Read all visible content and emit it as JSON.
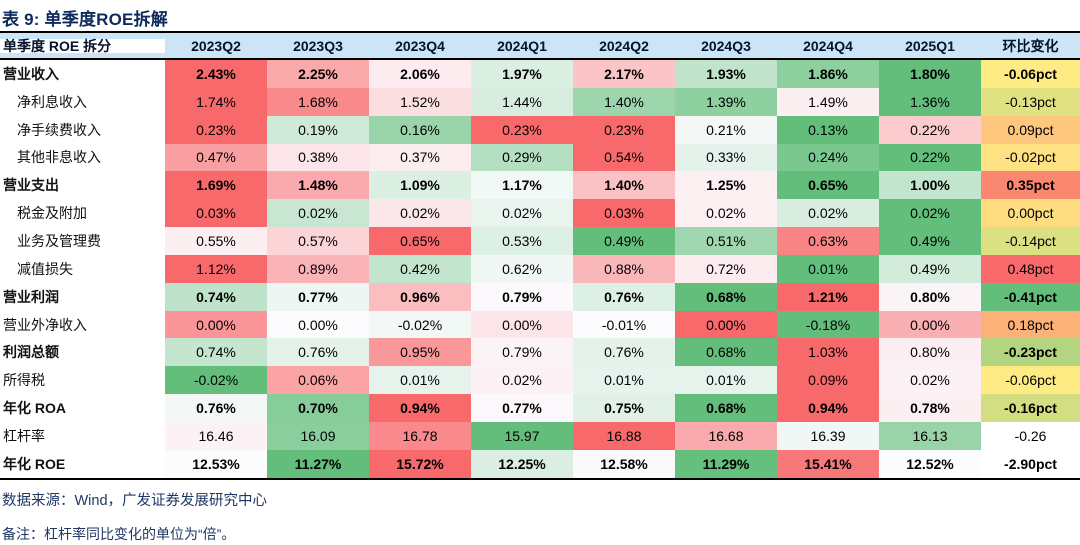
{
  "title": "表 9: 单季度ROE拆解",
  "colors": {
    "header_bg": "#cbe4f6",
    "title_text": "#0e2a5c",
    "footer_text": "#1f3864",
    "scale_red": "#F8696B",
    "scale_yellow": "#FFEB84",
    "scale_green": "#63BE7B",
    "border": "#000000"
  },
  "table": {
    "columns": [
      "单季度 ROE 拆分",
      "2023Q2",
      "2023Q3",
      "2023Q4",
      "2024Q1",
      "2024Q2",
      "2024Q3",
      "2024Q4",
      "2025Q1",
      "环比变化"
    ],
    "rows": [
      {
        "label": "营业收入",
        "indent": false,
        "label_bold": true,
        "values_bold": true,
        "qoq_bold": true,
        "values": [
          "2.43%",
          "2.25%",
          "2.06%",
          "1.97%",
          "2.17%",
          "1.93%",
          "1.86%",
          "1.80%"
        ],
        "colors": [
          "#F8696B",
          "#FAA9AB",
          "#FCECEF",
          "#DCEFE3",
          "#FBC5C8",
          "#C0E4CB",
          "#8ECFA0",
          "#63BE7B"
        ],
        "qoq": "-0.06pct",
        "qoq_color": "#FFEB84"
      },
      {
        "label": "净利息收入",
        "indent": true,
        "label_bold": false,
        "values_bold": false,
        "qoq_bold": false,
        "values": [
          "1.74%",
          "1.68%",
          "1.52%",
          "1.44%",
          "1.40%",
          "1.39%",
          "1.49%",
          "1.36%"
        ],
        "colors": [
          "#F8696B",
          "#F98A8B",
          "#FBDFE1",
          "#D8EDE0",
          "#9DD6AD",
          "#8FD0A1",
          "#FCEFF2",
          "#63BE7B"
        ],
        "qoq": "-0.13pct",
        "qoq_color": "#E0E282"
      },
      {
        "label": "净手续费收入",
        "indent": true,
        "label_bold": false,
        "values_bold": false,
        "qoq_bold": false,
        "values": [
          "0.23%",
          "0.19%",
          "0.16%",
          "0.23%",
          "0.23%",
          "0.21%",
          "0.13%",
          "0.22%"
        ],
        "colors": [
          "#F8696B",
          "#CFEAD8",
          "#99D4AA",
          "#F8696B",
          "#F8696B",
          "#F3F8F7",
          "#63BE7B",
          "#FBCBCE"
        ],
        "qoq": "0.09pct",
        "qoq_color": "#FDC77D"
      },
      {
        "label": "其他非息收入",
        "indent": true,
        "label_bold": false,
        "values_bold": false,
        "qoq_bold": false,
        "values": [
          "0.47%",
          "0.38%",
          "0.37%",
          "0.29%",
          "0.54%",
          "0.33%",
          "0.24%",
          "0.22%"
        ],
        "colors": [
          "#F99FA1",
          "#FBE5E8",
          "#FCEDEF",
          "#B5DFC2",
          "#F8696B",
          "#E4F2EB",
          "#7BC88F",
          "#63BE7B"
        ],
        "qoq": "-0.02pct",
        "qoq_color": "#FEE182"
      },
      {
        "label": "营业支出",
        "indent": false,
        "label_bold": true,
        "values_bold": true,
        "qoq_bold": true,
        "values": [
          "1.69%",
          "1.48%",
          "1.09%",
          "1.17%",
          "1.40%",
          "1.25%",
          "0.65%",
          "1.00%"
        ],
        "colors": [
          "#F8696B",
          "#FAA9AC",
          "#DBEFE3",
          "#F1F8F6",
          "#FAC2C4",
          "#FCF0F3",
          "#63BE7B",
          "#C3E5CE"
        ],
        "qoq": "0.35pct",
        "qoq_color": "#FA8871"
      },
      {
        "label": "税金及附加",
        "indent": true,
        "label_bold": false,
        "values_bold": false,
        "qoq_bold": false,
        "values": [
          "0.03%",
          "0.02%",
          "0.02%",
          "0.02%",
          "0.03%",
          "0.02%",
          "0.02%",
          "0.02%"
        ],
        "colors": [
          "#F8696B",
          "#C9E6D2",
          "#FBE7E9",
          "#EAF4EF",
          "#F8696B",
          "#FCF0F2",
          "#D9EEE1",
          "#63BE7B"
        ],
        "qoq": "0.00pct",
        "qoq_color": "#FEDD81"
      },
      {
        "label": "业务及管理费",
        "indent": true,
        "label_bold": false,
        "values_bold": false,
        "qoq_bold": false,
        "values": [
          "0.55%",
          "0.57%",
          "0.65%",
          "0.53%",
          "0.49%",
          "0.51%",
          "0.63%",
          "0.49%"
        ],
        "colors": [
          "#FCEFF2",
          "#FBD4D7",
          "#F8696B",
          "#DDF0E5",
          "#63BE7B",
          "#A0D7B0",
          "#F98486",
          "#63BE7B"
        ],
        "qoq": "-0.14pct",
        "qoq_color": "#DBE182"
      },
      {
        "label": "减值损失",
        "indent": true,
        "label_bold": false,
        "values_bold": false,
        "qoq_bold": false,
        "values": [
          "1.12%",
          "0.89%",
          "0.42%",
          "0.62%",
          "0.88%",
          "0.72%",
          "0.01%",
          "0.49%"
        ],
        "colors": [
          "#F8696B",
          "#FAB4B7",
          "#C2E5CD",
          "#F0F7F5",
          "#FAB7BA",
          "#FCECEF",
          "#63BE7B",
          "#D2EBDB"
        ],
        "qoq": "0.48pct",
        "qoq_color": "#F8696B"
      },
      {
        "label": "营业利润",
        "indent": false,
        "label_bold": true,
        "values_bold": true,
        "qoq_bold": true,
        "values": [
          "0.74%",
          "0.77%",
          "0.96%",
          "0.79%",
          "0.76%",
          "0.68%",
          "1.21%",
          "0.80%"
        ],
        "colors": [
          "#BFE3CA",
          "#EDF6F2",
          "#FABEC1",
          "#FCF9FC",
          "#DDF0E5",
          "#63BE7B",
          "#F8696B",
          "#FCF5F8"
        ],
        "qoq": "-0.41pct",
        "qoq_color": "#63BE7B"
      },
      {
        "label": "营业外净收入",
        "indent": false,
        "label_bold": false,
        "values_bold": false,
        "qoq_bold": false,
        "values": [
          "0.00%",
          "0.00%",
          "-0.02%",
          "0.00%",
          "-0.01%",
          "0.00%",
          "-0.18%",
          "0.00%"
        ],
        "colors": [
          "#F99598",
          "#FCFCFE",
          "#F2F8F5",
          "#FCE5E8",
          "#FCFCFE",
          "#F8696B",
          "#63BE7B",
          "#FAAFB2"
        ],
        "qoq": "0.18pct",
        "qoq_color": "#FCB179"
      },
      {
        "label": "利润总额",
        "indent": false,
        "label_bold": true,
        "values_bold": false,
        "qoq_bold": true,
        "values": [
          "0.74%",
          "0.76%",
          "0.95%",
          "0.79%",
          "0.76%",
          "0.68%",
          "1.03%",
          "0.80%"
        ],
        "colors": [
          "#C4E5CE",
          "#E4F2EA",
          "#F99799",
          "#FCF3F6",
          "#E4F2EA",
          "#63BE7B",
          "#F8696B",
          "#FCEEF1"
        ],
        "qoq": "-0.23pct",
        "qoq_color": "#B3D580"
      },
      {
        "label": "所得税",
        "indent": false,
        "label_bold": false,
        "values_bold": false,
        "qoq_bold": false,
        "values": [
          "-0.02%",
          "0.06%",
          "0.01%",
          "0.02%",
          "0.01%",
          "0.01%",
          "0.09%",
          "0.02%"
        ],
        "colors": [
          "#63BE7B",
          "#FAA4A6",
          "#E6F3EC",
          "#FCF2F5",
          "#E6F3EC",
          "#E6F3EC",
          "#F8696B",
          "#FCF2F5"
        ],
        "qoq": "-0.06pct",
        "qoq_color": "#FFEB84"
      },
      {
        "label": "年化 ROA",
        "indent": false,
        "label_bold": true,
        "values_bold": true,
        "qoq_bold": true,
        "values": [
          "0.76%",
          "0.70%",
          "0.94%",
          "0.77%",
          "0.75%",
          "0.68%",
          "0.94%",
          "0.78%"
        ],
        "colors": [
          "#F3F8F7",
          "#87CD9A",
          "#F8696B",
          "#FCF8FB",
          "#E1F1E8",
          "#63BE7B",
          "#F8696B",
          "#FCEFF2"
        ],
        "qoq": "-0.16pct",
        "qoq_color": "#D2DE81"
      },
      {
        "label": "杠杆率",
        "indent": false,
        "label_bold": false,
        "values_bold": false,
        "qoq_bold": false,
        "values": [
          "16.46",
          "16.09",
          "16.78",
          "15.97",
          "16.88",
          "16.68",
          "16.39",
          "16.13"
        ],
        "colors": [
          "#FCF1F4",
          "#8BCE9E",
          "#F9898C",
          "#63BE7B",
          "#F8696B",
          "#FAAAAC",
          "#F0F7F5",
          "#99D4A9"
        ],
        "qoq": "-0.26",
        "qoq_color": "#FFFFFF"
      },
      {
        "label": "年化 ROE",
        "indent": false,
        "label_bold": true,
        "values_bold": true,
        "qoq_bold": true,
        "values": [
          "12.53%",
          "11.27%",
          "15.72%",
          "12.25%",
          "12.58%",
          "11.29%",
          "15.41%",
          "12.52%"
        ],
        "colors": [
          "#FCFCFF",
          "#63BE7B",
          "#F8696B",
          "#DBEEE2",
          "#FCF9FC",
          "#65BF7D",
          "#F87779",
          "#FCFCFE"
        ],
        "qoq": "-2.90pct",
        "qoq_color": "#FFFFFF"
      }
    ]
  },
  "footer": {
    "source": "数据来源：Wind，广发证券发展研究中心",
    "note": "备注：杠杆率同比变化的单位为“倍”。"
  }
}
